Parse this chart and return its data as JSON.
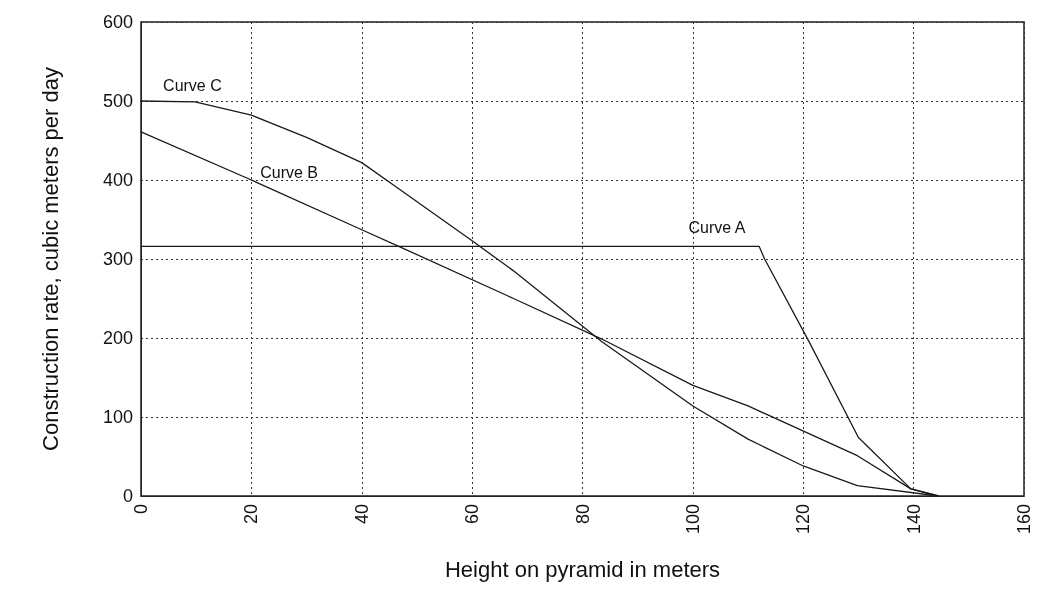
{
  "chart_data": {
    "type": "line",
    "xlabel": "Height on pyramid in meters",
    "ylabel": "Construction rate, cubic meters per day",
    "xlim": [
      0,
      160
    ],
    "xticks": [
      0,
      20,
      40,
      60,
      80,
      100,
      120,
      140,
      160
    ],
    "ylim": [
      0,
      600
    ],
    "yticks": [
      0,
      100,
      200,
      300,
      400,
      500,
      600
    ],
    "grid": true,
    "marker": "none",
    "line_style": "solid",
    "series": [
      {
        "name": "Curve A",
        "color": "#1a1a1a",
        "x": [
          0,
          112,
          113,
          121,
          130,
          139.5,
          144.5
        ],
        "values": [
          316,
          316,
          300,
          196,
          74,
          9,
          0
        ]
      },
      {
        "name": "Curve B",
        "color": "#1a1a1a",
        "x": [
          0,
          20,
          40,
          46.7,
          67.5,
          83.4,
          100,
          110,
          129.8,
          139.5,
          144.5
        ],
        "values": [
          461,
          400,
          337,
          316,
          250,
          199,
          140,
          114,
          51,
          9,
          0
        ]
      },
      {
        "name": "Curve C",
        "color": "#1a1a1a",
        "x": [
          0,
          9.8,
          20,
          30,
          40,
          46.7,
          60,
          67.5,
          83.4,
          100,
          110,
          120,
          129.8,
          144.5
        ],
        "values": [
          500,
          499,
          482,
          454,
          422,
          389,
          323,
          285,
          196,
          114,
          72,
          38,
          13,
          0
        ]
      }
    ]
  }
}
